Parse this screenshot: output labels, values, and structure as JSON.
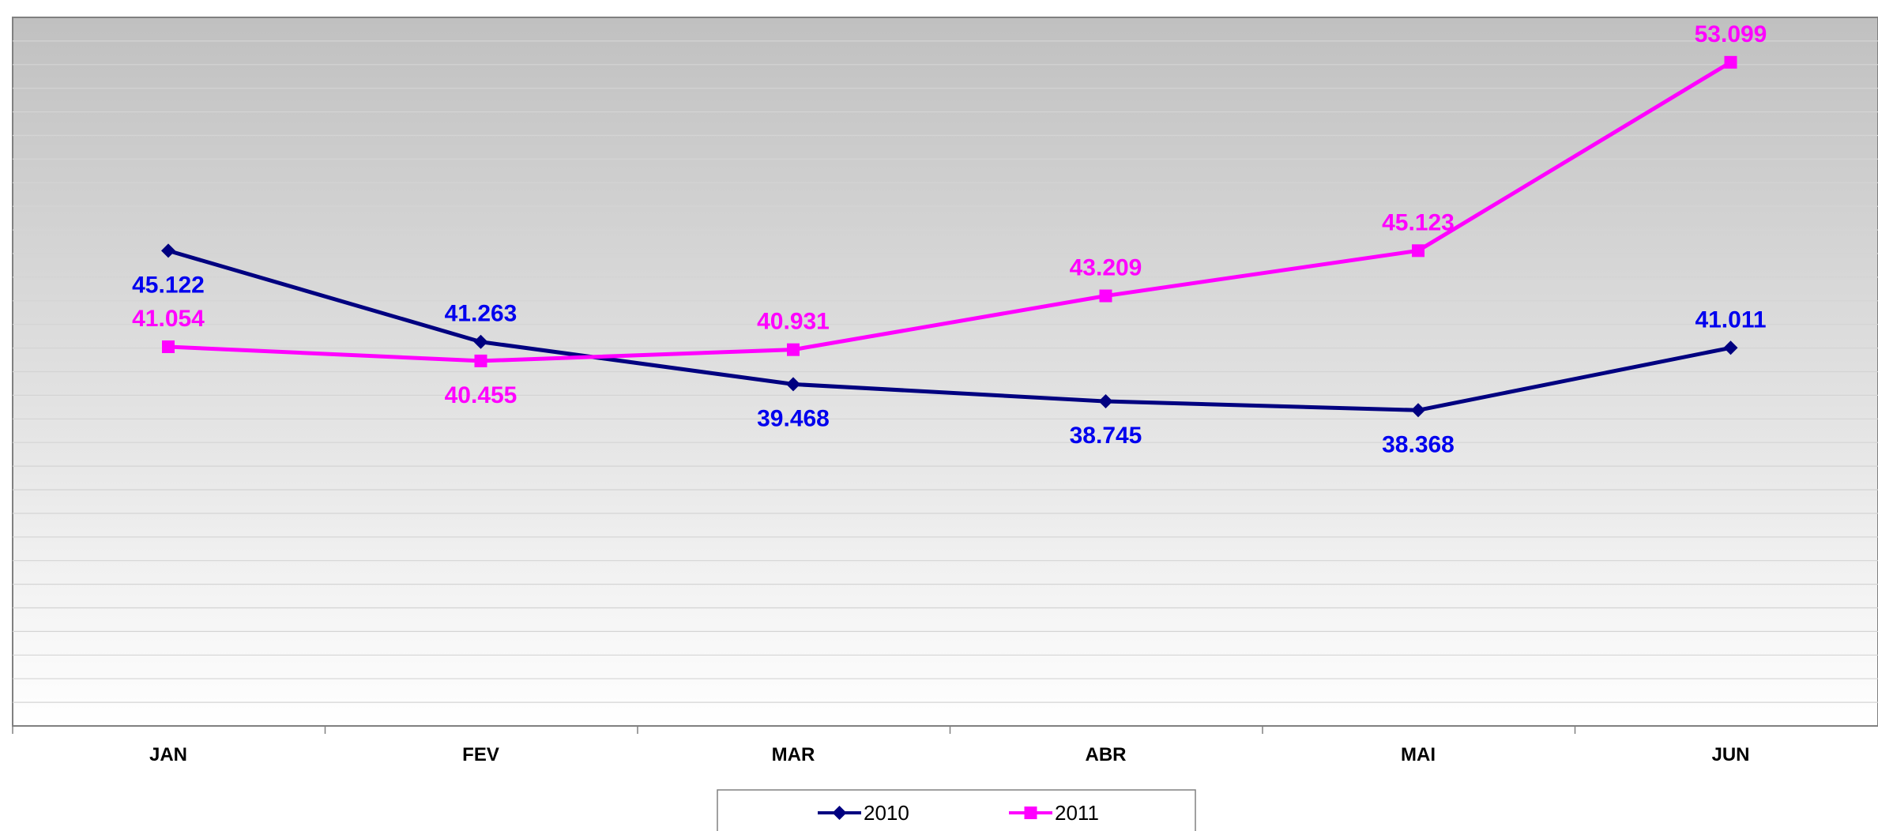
{
  "chart_data": {
    "type": "line",
    "title": "",
    "xlabel": "",
    "ylabel": "",
    "categories": [
      "JAN",
      "FEV",
      "MAR",
      "ABR",
      "MAI",
      "JUN"
    ],
    "ylim": [
      25,
      55
    ],
    "grid": "horizontal gridlines",
    "legend_position": "bottom-center",
    "background": "gradient gray to white",
    "series": [
      {
        "name": "2010",
        "values": [
          45.122,
          41.263,
          39.468,
          38.745,
          38.368,
          41.011
        ],
        "labels": [
          "45.122",
          "41.263",
          "39.468",
          "38.745",
          "38.368",
          "41.011"
        ],
        "label_positions": [
          "below",
          "above",
          "below",
          "below",
          "below",
          "above"
        ],
        "line_color": "#000080",
        "label_color": "#0000ee",
        "marker": "diamond"
      },
      {
        "name": "2011",
        "values": [
          41.054,
          40.455,
          40.931,
          43.209,
          45.123,
          53.099
        ],
        "labels": [
          "41.054",
          "40.455",
          "40.931",
          "43.209",
          "45.123",
          "53.099"
        ],
        "label_positions": [
          "above",
          "below",
          "above",
          "above",
          "above",
          "above"
        ],
        "line_color": "#ff00ff",
        "label_color": "#ff00ff",
        "marker": "square"
      }
    ]
  }
}
